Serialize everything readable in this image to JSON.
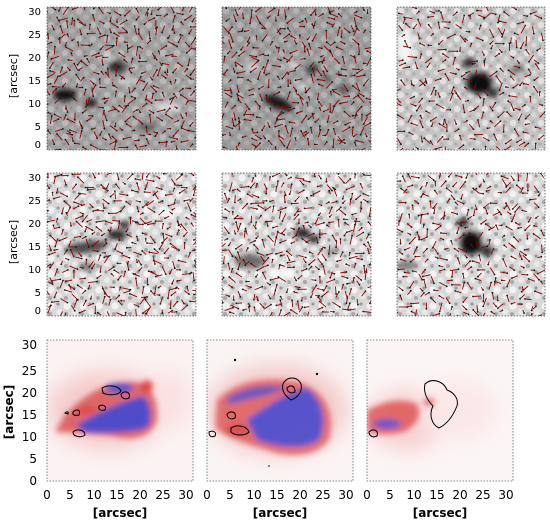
{
  "figure": {
    "rows": [
      {
        "id": "row-1",
        "ylabel": "[arcsec]",
        "yticks": [
          "0",
          "5",
          "10",
          "15",
          "20",
          "25",
          "30"
        ],
        "panels": [
          {
            "id": "p11",
            "type": "grayscale-vectors",
            "image_tone": "medium"
          },
          {
            "id": "p12",
            "type": "grayscale-vectors",
            "image_tone": "medium"
          },
          {
            "id": "p13",
            "type": "grayscale-vectors",
            "image_tone": "light"
          }
        ]
      },
      {
        "id": "row-2",
        "ylabel": "[arcsec]",
        "yticks": [
          "0",
          "5",
          "10",
          "15",
          "20",
          "25",
          "30"
        ],
        "panels": [
          {
            "id": "p21",
            "type": "grayscale-vectors",
            "image_tone": "light"
          },
          {
            "id": "p22",
            "type": "grayscale-vectors",
            "image_tone": "light"
          },
          {
            "id": "p23",
            "type": "grayscale-vectors",
            "image_tone": "light"
          }
        ]
      },
      {
        "id": "row-3",
        "ylabel": "[arcsec]",
        "yticks": [
          "0",
          "5",
          "10",
          "15",
          "20",
          "25",
          "30"
        ],
        "xlabel": "[arcsec]",
        "xticks": [
          "0",
          "5",
          "10",
          "15",
          "20",
          "25",
          "30"
        ],
        "panels": [
          {
            "id": "p31",
            "type": "red-blue-contour"
          },
          {
            "id": "p32",
            "type": "red-blue-contour"
          },
          {
            "id": "p33",
            "type": "red-blue-contour"
          }
        ]
      }
    ],
    "colors": {
      "vector": "#8b0000",
      "positive": "#e03030",
      "negative": "#3040e0",
      "contour": "#000000",
      "frame": "#000000"
    }
  }
}
